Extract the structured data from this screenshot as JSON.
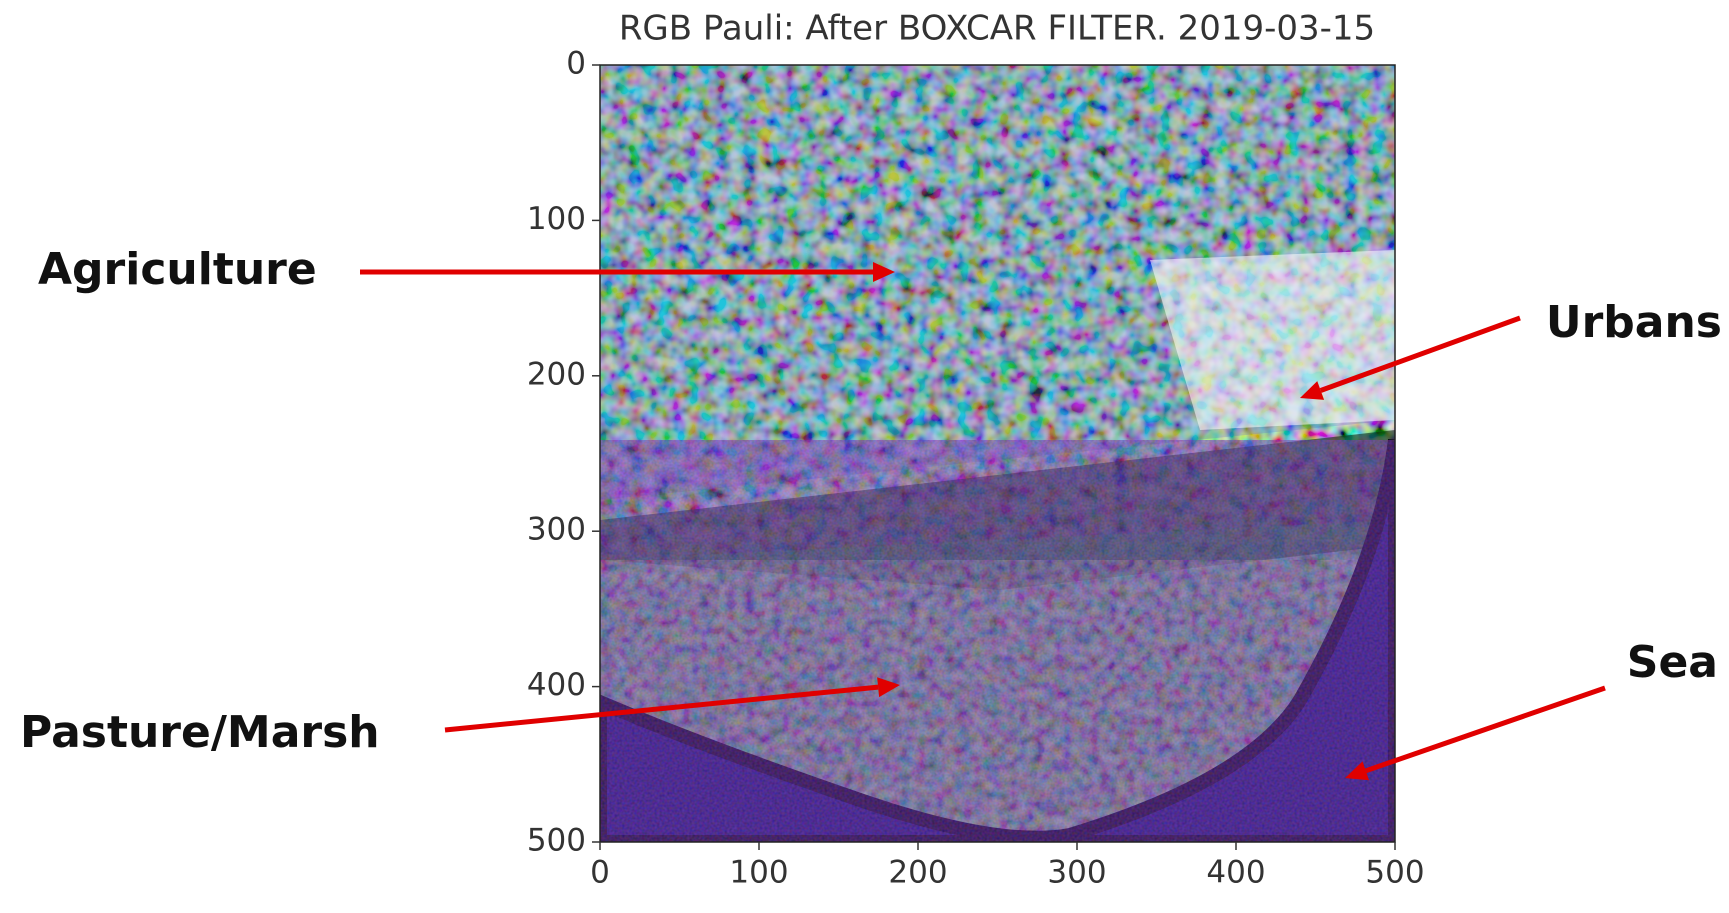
{
  "chart_data": {
    "type": "image",
    "title": "RGB Pauli: After BOXCAR FILTER. 2019-03-15",
    "xlim": [
      0,
      500
    ],
    "ylim": [
      500,
      0
    ],
    "xticks": [
      0,
      100,
      200,
      300,
      400,
      500
    ],
    "yticks": [
      0,
      100,
      200,
      300,
      400,
      500
    ],
    "annotations": [
      "Agriculture",
      "Urbans",
      "Pasture/Marsh",
      "Sea"
    ],
    "arrow_color": "#e00000"
  }
}
